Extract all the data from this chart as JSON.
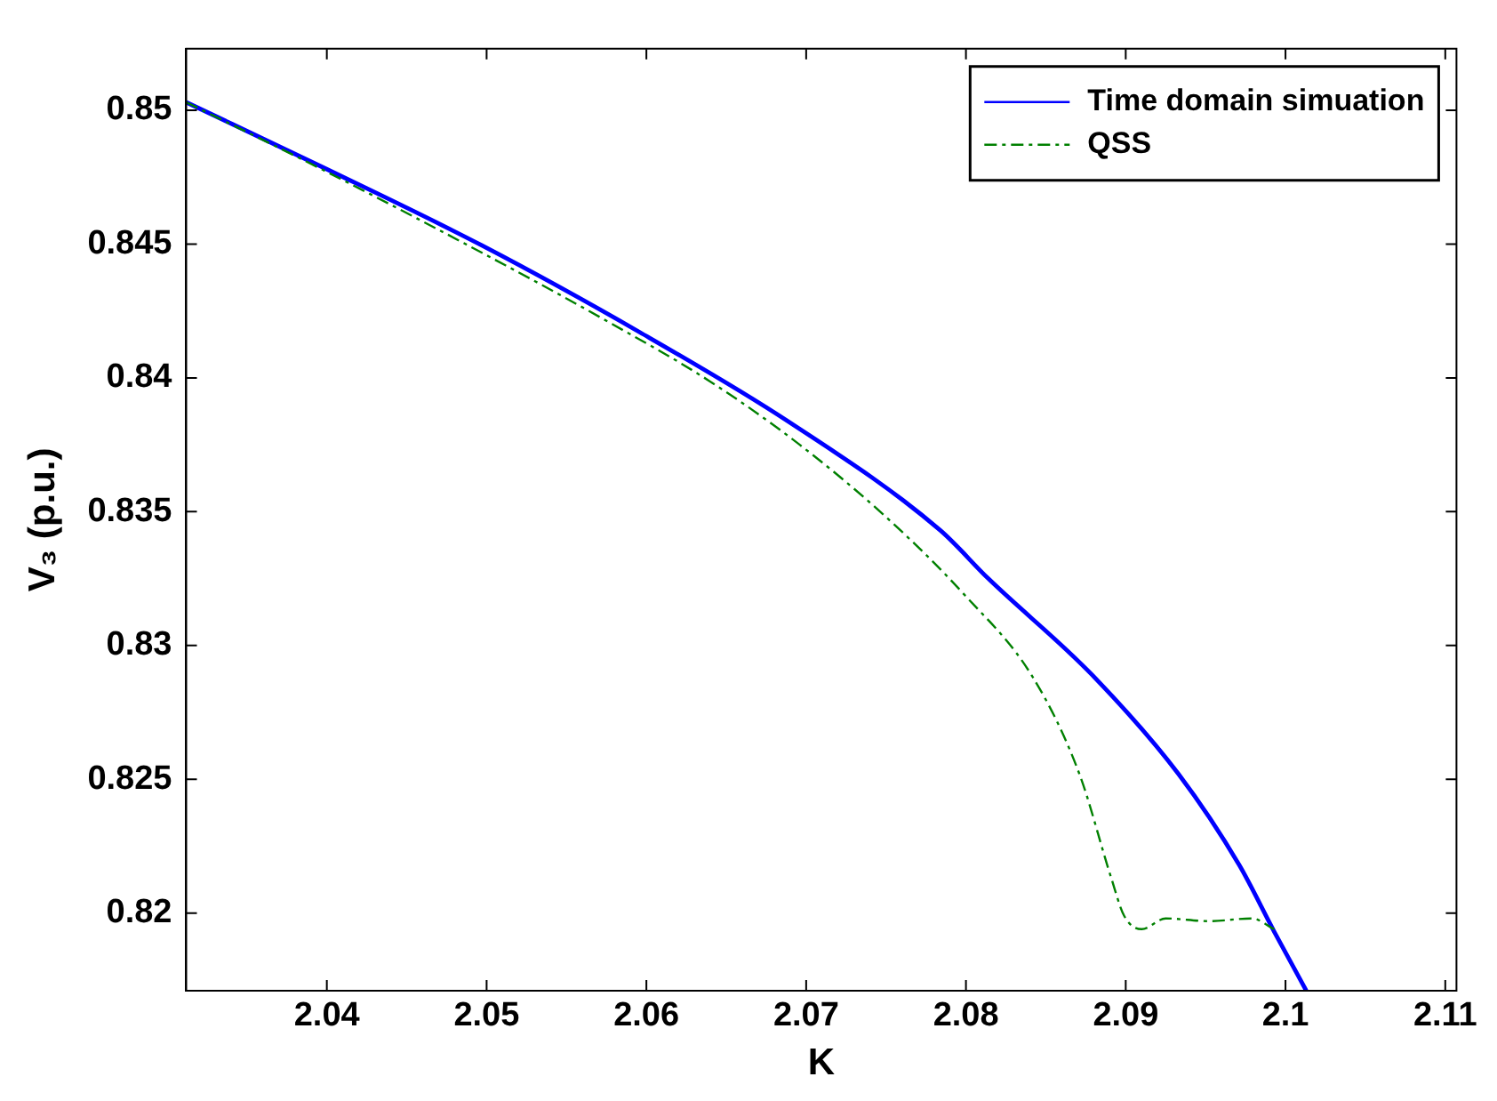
{
  "chart_data": {
    "type": "line",
    "xlabel": "K",
    "ylabel": "V₃ (p.u.)",
    "xlim": [
      2.0312,
      2.1107
    ],
    "xticks": [
      2.04,
      2.05,
      2.06,
      2.07,
      2.08,
      2.09,
      {
        "value": 2.1,
        "label": "2.1"
      },
      2.11
    ],
    "ylim": [
      0.8171,
      0.8523
    ],
    "yticks": [
      0.82,
      0.825,
      0.83,
      0.835,
      0.84,
      0.845,
      0.85
    ],
    "grid": false,
    "legend": "top right",
    "marker": "none",
    "series": [
      {
        "name": "Time domain simuation",
        "color": "#0000ff",
        "line_style": "solid",
        "x": [
          2.0312,
          2.04,
          2.0497,
          2.0596,
          2.0688,
          2.0784,
          2.0814,
          2.0879,
          2.0933,
          2.0971,
          2.0993,
          2.1013
        ],
        "values": [
          0.8503,
          0.8478,
          0.84495,
          0.8417,
          0.8384,
          0.8343,
          0.8325,
          0.8289,
          0.8252,
          0.8218,
          0.8193,
          0.8171
        ]
      },
      {
        "name": "QSS",
        "color": "#008000",
        "line_style": "dashed",
        "x": [
          2.0312,
          2.04,
          2.0512,
          2.0573,
          2.0639,
          2.0696,
          2.075,
          2.0799,
          2.0842,
          2.0871,
          2.0891,
          2.0899,
          2.091,
          2.0925,
          2.0952,
          2.0979,
          2.0993
        ],
        "values": [
          0.8503,
          0.8477,
          0.8442,
          0.8422,
          0.8399,
          0.8375,
          0.8348,
          0.8319,
          0.8288,
          0.8252,
          0.8213,
          0.8199,
          0.8194,
          0.8198,
          0.8197,
          0.8198,
          0.8194
        ]
      }
    ]
  }
}
